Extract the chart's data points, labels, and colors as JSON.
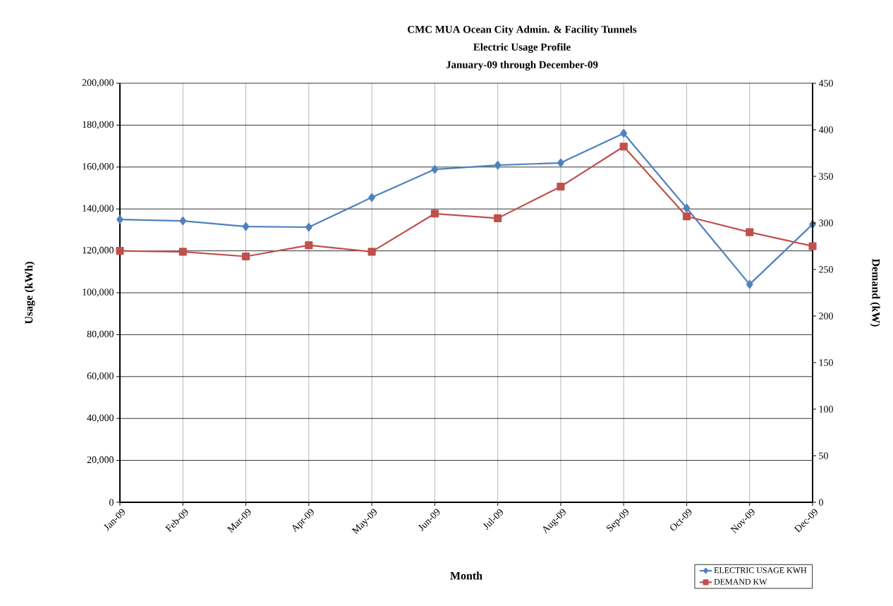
{
  "chart_data": {
    "type": "line",
    "title": "CMC MUA Ocean City Admin. & Facility Tunnels",
    "subtitle": "Electric Usage Profile",
    "annotations": [
      "January-09 through December-09"
    ],
    "xlabel": "Month",
    "ylabel": "Usage (kWh)",
    "y2label": "Demand (kW)",
    "categories": [
      "Jan-09",
      "Feb-09",
      "Mar-09",
      "Apr-09",
      "May-09",
      "Jun-09",
      "Jul-09",
      "Aug-09",
      "Sep-09",
      "Oct-09",
      "Nov-09",
      "Dec-09"
    ],
    "series": [
      {
        "name": "ELECTRIC USAGE KWH",
        "color": "#4f81bd",
        "marker": "diamond",
        "values": [
          135000,
          134300,
          131600,
          131300,
          145500,
          158900,
          160900,
          162000,
          176100,
          140400,
          104000,
          132700
        ]
      },
      {
        "name": "DEMAND KW",
        "color": "#c0504d",
        "marker": "square",
        "axis": "y2",
        "values": [
          270,
          269,
          264,
          276,
          269,
          310,
          305,
          339,
          382,
          307,
          290,
          275
        ]
      }
    ],
    "ylim": [
      0,
      200000
    ],
    "yticks": [
      0,
      {
        "value": 20000,
        "label": "20,000"
      },
      {
        "value": 40000,
        "label": "40,000"
      },
      {
        "value": 60000,
        "label": "60,000"
      },
      {
        "value": 80000,
        "label": "80,000"
      },
      {
        "value": 100000,
        "label": "100,000"
      },
      {
        "value": 120000,
        "label": "120,000"
      },
      {
        "value": 140000,
        "label": "140,000"
      },
      {
        "value": 160000,
        "label": "160,000"
      },
      {
        "value": 180000,
        "label": "180,000"
      },
      {
        "value": 200000,
        "label": "200,000"
      }
    ],
    "y2lim": [
      0,
      450
    ],
    "y2ticks": [
      0,
      50,
      100,
      150,
      200,
      250,
      300,
      350,
      400,
      450
    ],
    "grid": true,
    "legend": "bottom right",
    "line_style": "solid"
  }
}
